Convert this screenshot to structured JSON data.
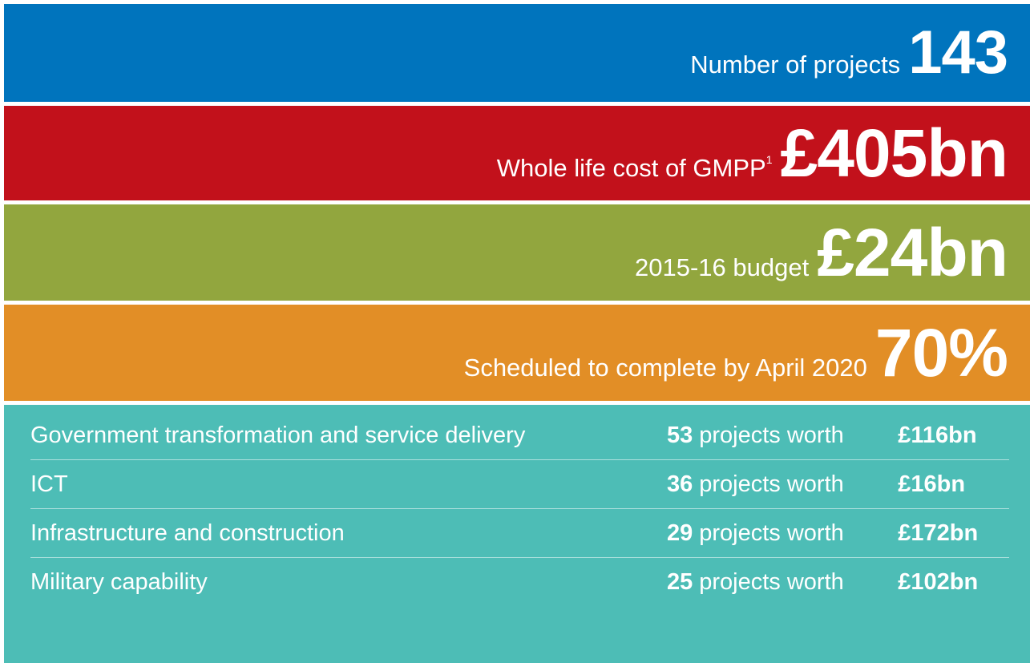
{
  "banners": [
    {
      "label": "Number of projects",
      "value": "143"
    },
    {
      "label": "Whole life cost of GMPP",
      "note": "1",
      "value": "£405bn"
    },
    {
      "label": "2015-16 budget",
      "value": "£24bn"
    },
    {
      "label": "Scheduled to complete by April 2020",
      "value": "70%"
    }
  ],
  "table": {
    "rows": [
      {
        "category": "Government transformation and service delivery",
        "count": "53",
        "unit": "projects worth",
        "value": "£116bn"
      },
      {
        "category": "ICT",
        "count": "36",
        "unit": "projects worth",
        "value": "£16bn"
      },
      {
        "category": "Infrastructure and construction",
        "count": "29",
        "unit": "projects worth",
        "value": "£172bn"
      },
      {
        "category": "Military capability",
        "count": "25",
        "unit": "projects worth",
        "value": "£102bn"
      }
    ]
  }
}
